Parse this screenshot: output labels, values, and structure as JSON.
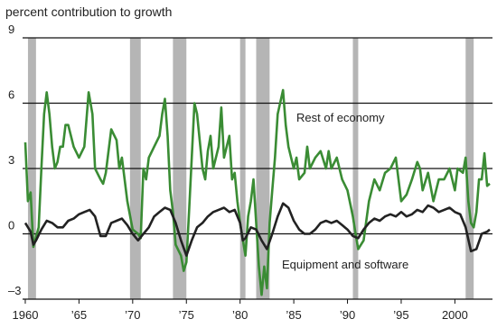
{
  "chart_data": {
    "type": "line",
    "title": "percent contribution to growth",
    "annotations": [
      "Rest of economy",
      "Equipment and software"
    ],
    "xlim": [
      1959.75,
      2003.5
    ],
    "ylim": [
      -3,
      9
    ],
    "yticks": [
      {
        "value": -3,
        "label": "–3"
      },
      0,
      3,
      6,
      9
    ],
    "xticks": [
      1960,
      {
        "value": 1965,
        "label": "’65"
      },
      {
        "value": 1970,
        "label": "’70"
      },
      {
        "value": 1975,
        "label": "’75"
      },
      {
        "value": 1980,
        "label": "’80"
      },
      {
        "value": 1985,
        "label": "’85"
      },
      {
        "value": 1990,
        "label": "’90"
      },
      {
        "value": 1995,
        "label": "’95"
      },
      2000
    ],
    "grid": true,
    "recession_color": "#b5b5b5",
    "recessions": [
      [
        1960.25,
        1961.0
      ],
      [
        1969.75,
        1970.75
      ],
      [
        1973.75,
        1975.0
      ],
      [
        1980.0,
        1980.5
      ],
      [
        1981.5,
        1982.75
      ],
      [
        1990.5,
        1991.0
      ],
      [
        2001.0,
        2001.75
      ]
    ],
    "series": [
      {
        "name": "Rest of economy",
        "color": "#3a8c34",
        "x": [
          1960.0,
          1960.25,
          1960.5,
          1960.75,
          1961.25,
          1961.5,
          1961.75,
          1962.0,
          1962.25,
          1962.5,
          1962.75,
          1963.0,
          1963.25,
          1963.5,
          1963.75,
          1964.0,
          1964.5,
          1965.0,
          1965.5,
          1965.9,
          1966.25,
          1966.5,
          1967.0,
          1967.25,
          1967.5,
          1968.0,
          1968.5,
          1968.75,
          1969.0,
          1969.5,
          1970.0,
          1970.5,
          1970.75,
          1971.0,
          1971.25,
          1971.5,
          1972.0,
          1972.5,
          1972.75,
          1973.0,
          1973.25,
          1973.5,
          1973.75,
          1974.0,
          1974.5,
          1974.75,
          1975.0,
          1975.25,
          1975.5,
          1975.75,
          1976.0,
          1976.5,
          1976.75,
          1977.0,
          1977.25,
          1977.5,
          1978.0,
          1978.25,
          1978.5,
          1979.0,
          1979.25,
          1979.5,
          1979.75,
          1980.0,
          1980.5,
          1980.75,
          1981.0,
          1981.25,
          1981.5,
          1981.75,
          1982.0,
          1982.25,
          1982.5,
          1982.75,
          1983.0,
          1983.25,
          1983.5,
          1984.0,
          1984.25,
          1984.5,
          1985.0,
          1985.25,
          1985.5,
          1986.0,
          1986.25,
          1986.5,
          1987.0,
          1987.5,
          1988.0,
          1988.25,
          1988.5,
          1989.0,
          1989.5,
          1990.0,
          1990.5,
          1990.75,
          1991.0,
          1991.5,
          1992.0,
          1992.5,
          1993.0,
          1993.5,
          1994.0,
          1994.5,
          1994.75,
          1995.0,
          1995.5,
          1996.0,
          1996.5,
          1996.75,
          1997.0,
          1997.5,
          1998.0,
          1998.5,
          1999.0,
          1999.5,
          2000.0,
          2000.25,
          2000.75,
          2001.0,
          2001.25,
          2001.5,
          2001.75,
          2002.0,
          2002.25,
          2002.5,
          2002.75,
          2003.0,
          2003.25
        ],
        "values": [
          4.2,
          1.5,
          1.9,
          -0.6,
          0.3,
          3.0,
          5.5,
          6.5,
          5.5,
          4.0,
          3.0,
          3.3,
          4.0,
          4.0,
          5.0,
          5.0,
          4.0,
          3.5,
          4.0,
          6.5,
          5.5,
          3.0,
          2.5,
          2.3,
          2.8,
          4.8,
          4.3,
          3.0,
          3.5,
          1.5,
          0.2,
          0.0,
          -0.2,
          3.0,
          2.5,
          3.5,
          4.0,
          4.5,
          5.5,
          6.2,
          4.5,
          2.0,
          1.0,
          -0.5,
          -1.0,
          -1.7,
          -1.3,
          1.0,
          3.5,
          6.0,
          5.5,
          3.0,
          2.5,
          3.8,
          4.5,
          3.0,
          4.0,
          5.8,
          3.5,
          4.5,
          2.5,
          2.8,
          1.5,
          0.5,
          -1.0,
          0.8,
          1.5,
          2.5,
          0.5,
          -1.5,
          -2.8,
          -1.5,
          -2.5,
          0.5,
          2.0,
          3.5,
          5.5,
          6.6,
          5.0,
          4.0,
          3.0,
          3.5,
          2.5,
          2.8,
          4.0,
          3.0,
          3.5,
          3.8,
          3.0,
          3.8,
          3.0,
          3.5,
          2.5,
          2.0,
          0.8,
          0.0,
          -0.7,
          -0.3,
          1.5,
          2.5,
          2.0,
          2.8,
          3.0,
          3.5,
          2.5,
          1.5,
          1.8,
          2.5,
          3.3,
          3.0,
          2.0,
          2.8,
          1.5,
          2.5,
          2.5,
          3.0,
          2.0,
          3.0,
          2.8,
          3.5,
          1.5,
          0.5,
          0.3,
          1.0,
          2.5,
          2.5,
          3.7,
          2.2,
          2.3
        ]
      },
      {
        "name": "Equipment and software",
        "color": "#222222",
        "x": [
          1960.0,
          1960.5,
          1960.75,
          1961.0,
          1961.5,
          1962.0,
          1962.5,
          1963.0,
          1963.5,
          1964.0,
          1964.5,
          1965.0,
          1965.5,
          1966.0,
          1966.5,
          1967.0,
          1967.5,
          1968.0,
          1968.5,
          1969.0,
          1969.5,
          1970.0,
          1970.5,
          1971.0,
          1971.5,
          1972.0,
          1972.5,
          1973.0,
          1973.5,
          1974.0,
          1974.5,
          1975.0,
          1975.5,
          1976.0,
          1976.5,
          1977.0,
          1977.5,
          1978.0,
          1978.5,
          1979.0,
          1979.5,
          1980.0,
          1980.25,
          1980.5,
          1981.0,
          1981.5,
          1982.0,
          1982.5,
          1983.0,
          1983.5,
          1984.0,
          1984.5,
          1985.0,
          1985.5,
          1986.0,
          1986.5,
          1987.0,
          1987.5,
          1988.0,
          1988.5,
          1989.0,
          1989.5,
          1990.0,
          1990.5,
          1991.0,
          1991.5,
          1992.0,
          1992.5,
          1993.0,
          1993.5,
          1994.0,
          1994.5,
          1995.0,
          1995.5,
          1996.0,
          1996.5,
          1997.0,
          1997.5,
          1998.0,
          1998.5,
          1999.0,
          1999.5,
          2000.0,
          2000.5,
          2001.0,
          2001.5,
          2002.0,
          2002.5,
          2003.0,
          2003.25
        ],
        "values": [
          0.5,
          0.1,
          -0.5,
          -0.3,
          0.2,
          0.6,
          0.5,
          0.3,
          0.3,
          0.6,
          0.7,
          0.9,
          1.0,
          1.1,
          0.8,
          -0.1,
          -0.1,
          0.5,
          0.6,
          0.7,
          0.4,
          0.0,
          -0.3,
          0.0,
          0.3,
          0.8,
          1.0,
          1.2,
          1.1,
          0.5,
          -0.3,
          -1.0,
          -0.3,
          0.3,
          0.5,
          0.8,
          1.0,
          1.1,
          1.2,
          1.0,
          1.1,
          0.5,
          -0.3,
          -0.2,
          0.3,
          0.2,
          -0.3,
          -0.7,
          0.0,
          0.8,
          1.4,
          1.2,
          0.6,
          0.2,
          0.0,
          0.0,
          0.2,
          0.5,
          0.6,
          0.5,
          0.6,
          0.4,
          0.2,
          -0.1,
          -0.2,
          0.2,
          0.5,
          0.7,
          0.6,
          0.8,
          0.9,
          0.8,
          1.0,
          0.8,
          0.9,
          1.1,
          1.0,
          1.3,
          1.2,
          1.0,
          1.1,
          1.2,
          1.0,
          0.9,
          0.3,
          -0.8,
          -0.7,
          0.0,
          0.1,
          0.2
        ]
      }
    ]
  }
}
